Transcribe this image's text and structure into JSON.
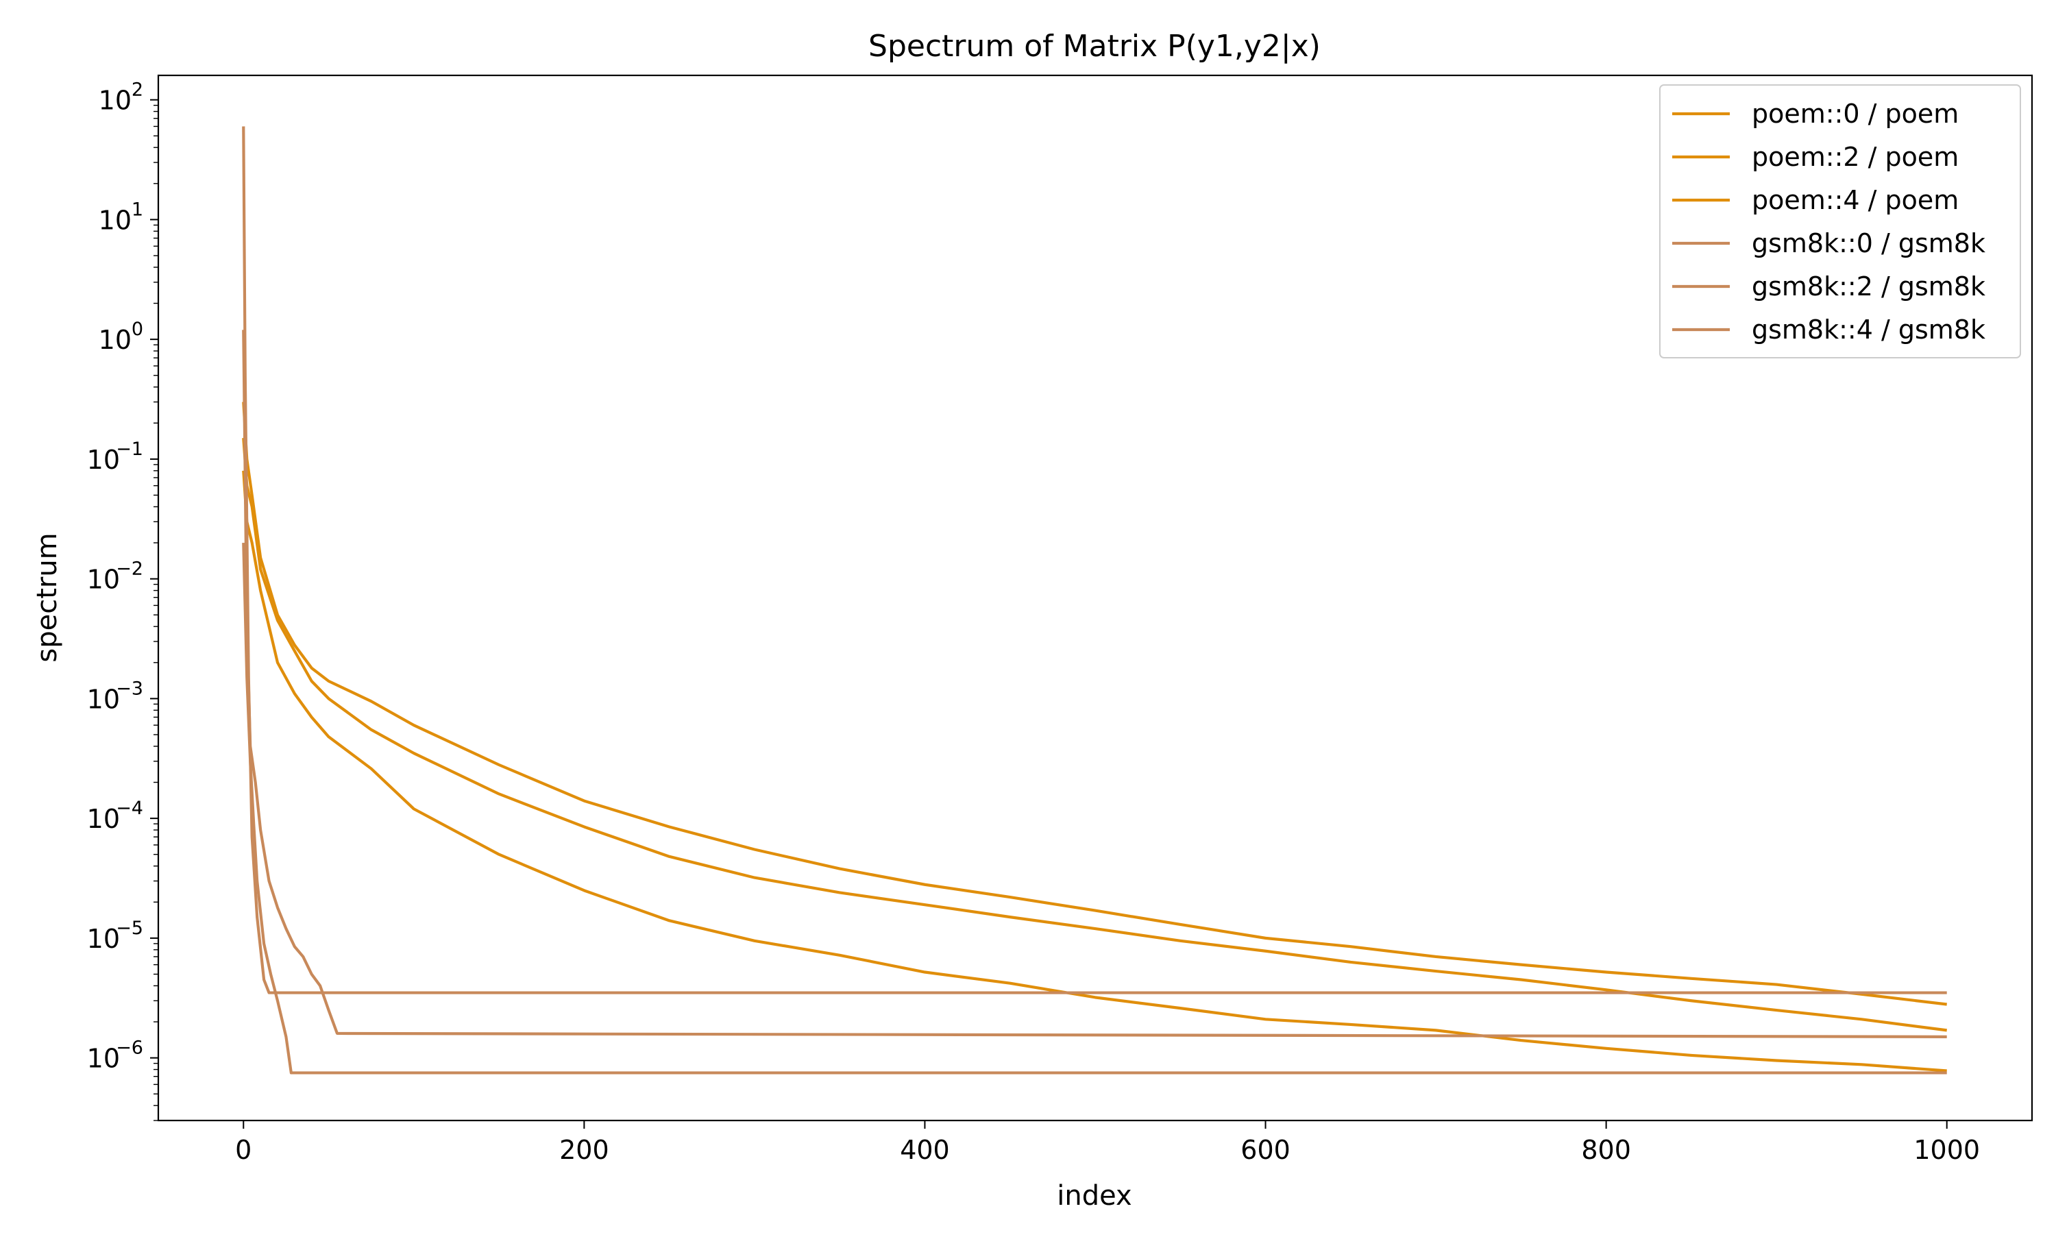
{
  "chart_data": {
    "type": "line",
    "title": "Spectrum of Matrix P(y1,y2|x)",
    "xlabel": "index",
    "ylabel": "spectrum",
    "yscale": "log",
    "xlim": [
      -50,
      1050
    ],
    "ylim": [
      3e-07,
      160
    ],
    "x_ticks": [
      0,
      200,
      400,
      600,
      800,
      1000
    ],
    "x_tick_labels": [
      "0",
      "200",
      "400",
      "600",
      "800",
      "1000"
    ],
    "y_ticks": [
      1e-06,
      1e-05,
      0.0001,
      0.001,
      0.01,
      0.1,
      1,
      10,
      100
    ],
    "y_tick_labels": [
      {
        "base": "10",
        "exp": "−6"
      },
      {
        "base": "10",
        "exp": "−5"
      },
      {
        "base": "10",
        "exp": "−4"
      },
      {
        "base": "10",
        "exp": "−3"
      },
      {
        "base": "10",
        "exp": "−2"
      },
      {
        "base": "10",
        "exp": "−1"
      },
      {
        "base": "10",
        "exp": "0"
      },
      {
        "base": "10",
        "exp": "1"
      },
      {
        "base": "10",
        "exp": "2"
      }
    ],
    "grid": false,
    "legend_position": "top-right",
    "series": [
      {
        "name": "poem::0 / poem",
        "color": "#E08E0B",
        "points": [
          [
            0,
            0.3
          ],
          [
            2,
            0.1
          ],
          [
            5,
            0.05
          ],
          [
            10,
            0.015
          ],
          [
            20,
            0.005
          ],
          [
            30,
            0.0028
          ],
          [
            40,
            0.0018
          ],
          [
            50,
            0.0014
          ],
          [
            75,
            0.00095
          ],
          [
            100,
            0.0006
          ],
          [
            150,
            0.00028
          ],
          [
            200,
            0.00014
          ],
          [
            250,
            8.5e-05
          ],
          [
            300,
            5.5e-05
          ],
          [
            350,
            3.8e-05
          ],
          [
            400,
            2.8e-05
          ],
          [
            450,
            2.2e-05
          ],
          [
            500,
            1.7e-05
          ],
          [
            550,
            1.3e-05
          ],
          [
            600,
            1e-05
          ],
          [
            650,
            8.5e-06
          ],
          [
            700,
            7e-06
          ],
          [
            750,
            6e-06
          ],
          [
            800,
            5.2e-06
          ],
          [
            850,
            4.6e-06
          ],
          [
            900,
            4.1e-06
          ],
          [
            950,
            3.4e-06
          ],
          [
            1000,
            2.8e-06
          ]
        ]
      },
      {
        "name": "poem::2 / poem",
        "color": "#E08E0B",
        "points": [
          [
            0,
            0.15
          ],
          [
            2,
            0.06
          ],
          [
            5,
            0.04
          ],
          [
            10,
            0.012
          ],
          [
            20,
            0.0045
          ],
          [
            30,
            0.0025
          ],
          [
            40,
            0.0014
          ],
          [
            50,
            0.001
          ],
          [
            75,
            0.00055
          ],
          [
            100,
            0.00035
          ],
          [
            150,
            0.00016
          ],
          [
            200,
            8.5e-05
          ],
          [
            250,
            4.8e-05
          ],
          [
            300,
            3.2e-05
          ],
          [
            350,
            2.4e-05
          ],
          [
            400,
            1.9e-05
          ],
          [
            450,
            1.5e-05
          ],
          [
            500,
            1.2e-05
          ],
          [
            550,
            9.5e-06
          ],
          [
            600,
            7.8e-06
          ],
          [
            650,
            6.3e-06
          ],
          [
            700,
            5.3e-06
          ],
          [
            750,
            4.5e-06
          ],
          [
            800,
            3.7e-06
          ],
          [
            850,
            3e-06
          ],
          [
            900,
            2.5e-06
          ],
          [
            950,
            2.1e-06
          ],
          [
            1000,
            1.7e-06
          ]
        ]
      },
      {
        "name": "poem::4 / poem",
        "color": "#E08E0B",
        "points": [
          [
            0,
            0.08
          ],
          [
            2,
            0.03
          ],
          [
            5,
            0.02
          ],
          [
            10,
            0.008
          ],
          [
            20,
            0.002
          ],
          [
            30,
            0.0011
          ],
          [
            40,
            0.0007
          ],
          [
            50,
            0.00048
          ],
          [
            75,
            0.00026
          ],
          [
            100,
            0.00012
          ],
          [
            150,
            5e-05
          ],
          [
            200,
            2.5e-05
          ],
          [
            250,
            1.4e-05
          ],
          [
            300,
            9.5e-06
          ],
          [
            350,
            7.2e-06
          ],
          [
            400,
            5.2e-06
          ],
          [
            450,
            4.2e-06
          ],
          [
            500,
            3.2e-06
          ],
          [
            550,
            2.6e-06
          ],
          [
            600,
            2.1e-06
          ],
          [
            650,
            1.9e-06
          ],
          [
            700,
            1.7e-06
          ],
          [
            750,
            1.4e-06
          ],
          [
            800,
            1.2e-06
          ],
          [
            850,
            1.05e-06
          ],
          [
            900,
            9.5e-07
          ],
          [
            950,
            8.8e-07
          ],
          [
            1000,
            7.8e-07
          ]
        ]
      },
      {
        "name": "gsm8k::0 / gsm8k",
        "color": "#C8895A",
        "points": [
          [
            0,
            60
          ],
          [
            1,
            0.5
          ],
          [
            3,
            0.0015
          ],
          [
            5,
            7e-05
          ],
          [
            8,
            1.5e-05
          ],
          [
            12,
            4.5e-06
          ],
          [
            15,
            3.5e-06
          ],
          [
            1000,
            3.5e-06
          ]
        ]
      },
      {
        "name": "gsm8k::2 / gsm8k",
        "color": "#C8895A",
        "points": [
          [
            0,
            1.2
          ],
          [
            2,
            0.004
          ],
          [
            4,
            0.0004
          ],
          [
            7,
            0.0002
          ],
          [
            10,
            8e-05
          ],
          [
            15,
            3e-05
          ],
          [
            20,
            1.8e-05
          ],
          [
            25,
            1.2e-05
          ],
          [
            30,
            8.5e-06
          ],
          [
            35,
            7e-06
          ],
          [
            40,
            5e-06
          ],
          [
            45,
            4e-06
          ],
          [
            50,
            2.5e-06
          ],
          [
            55,
            1.6e-06
          ],
          [
            1000,
            1.5e-06
          ]
        ]
      },
      {
        "name": "gsm8k::4 / gsm8k",
        "color": "#C8895A",
        "points": [
          [
            0,
            0.02
          ],
          [
            2,
            0.0015
          ],
          [
            4,
            0.0003
          ],
          [
            6,
            9e-05
          ],
          [
            8,
            3e-05
          ],
          [
            12,
            9e-06
          ],
          [
            16,
            5e-06
          ],
          [
            20,
            3e-06
          ],
          [
            25,
            1.5e-06
          ],
          [
            28,
            7.5e-07
          ],
          [
            1000,
            7.5e-07
          ]
        ]
      }
    ]
  }
}
